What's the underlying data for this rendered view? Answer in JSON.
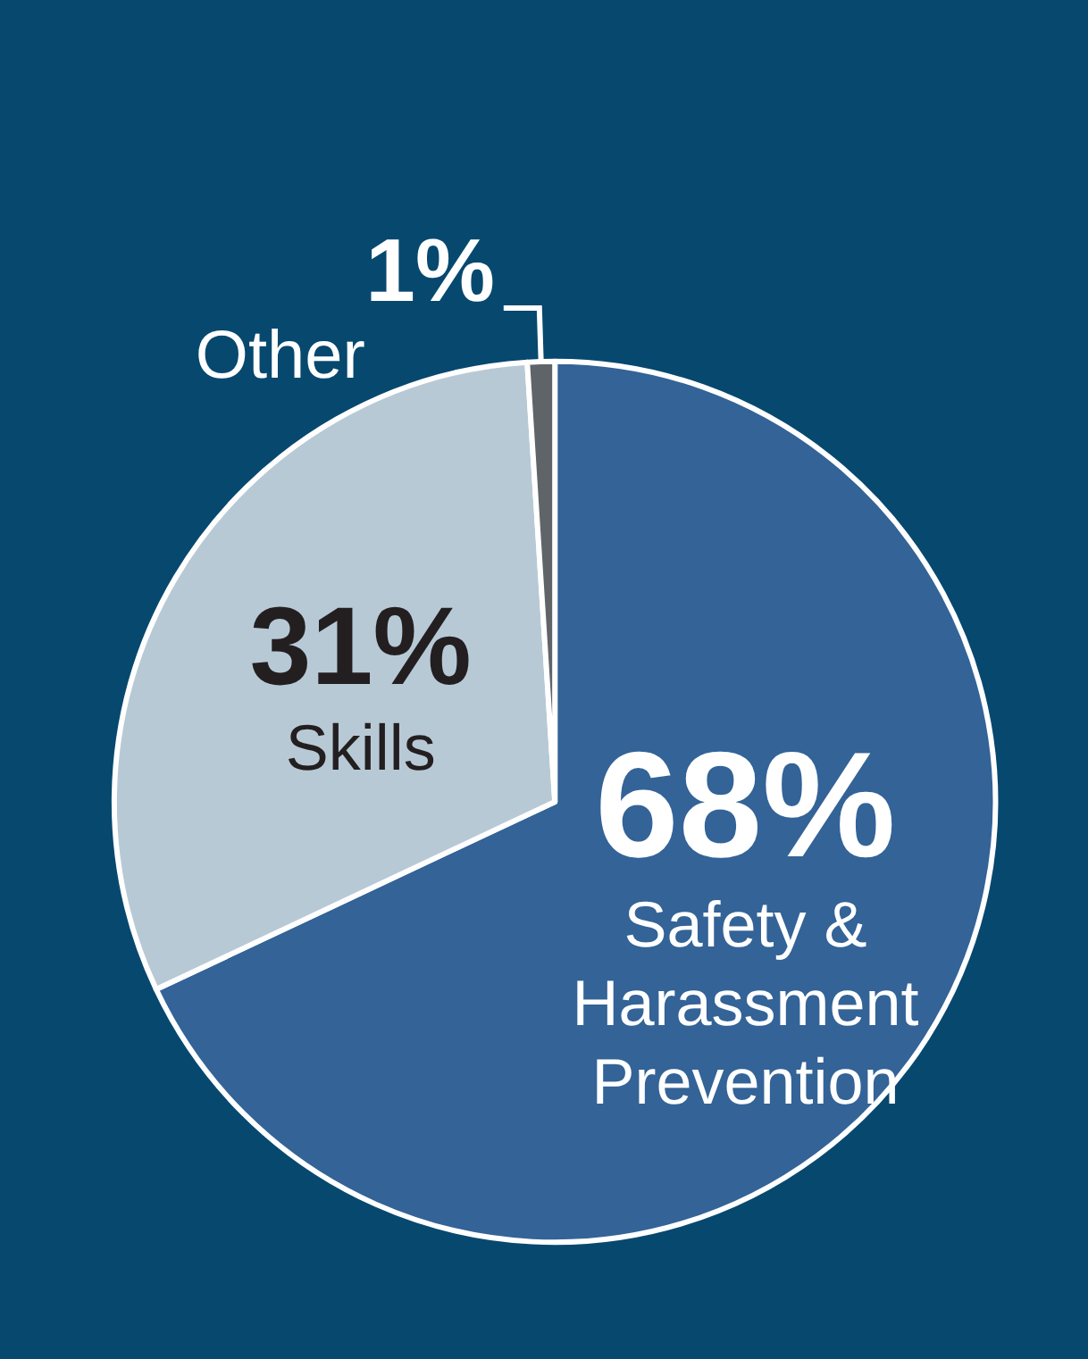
{
  "chart_data": {
    "type": "pie",
    "categories": [
      "Safety & Harassment Prevention",
      "Skills",
      "Other"
    ],
    "values": [
      68,
      31,
      1
    ],
    "value_labels": [
      "68%",
      "31%",
      "1%"
    ],
    "colors": [
      "#336397",
      "#b8c9d6",
      "#5f6468"
    ]
  }
}
